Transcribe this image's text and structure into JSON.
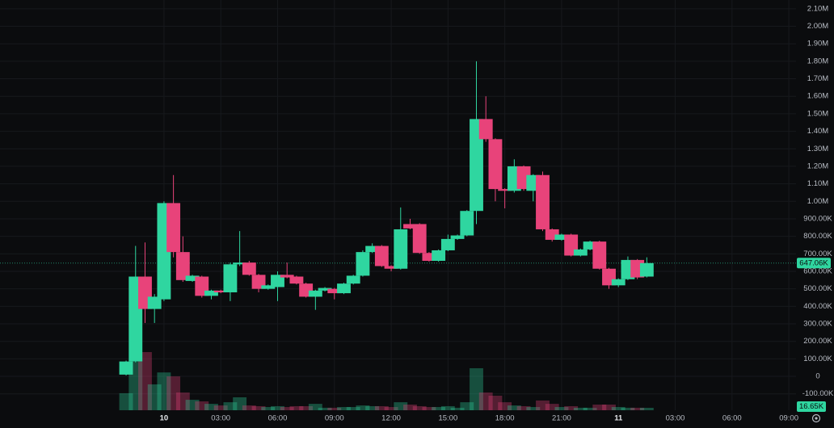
{
  "chart_data": {
    "type": "candlestick",
    "up_color": "#2fd6a0",
    "down_color": "#e8437a",
    "x": [
      -2,
      -1.5,
      -1,
      -0.5,
      0,
      0.5,
      1,
      1.5,
      2,
      2.5,
      3,
      3.5,
      4,
      4.5,
      5,
      5.5,
      6,
      6.5,
      7,
      7.5,
      8,
      8.5,
      9,
      9.5,
      10,
      10.5,
      11,
      11.5,
      12,
      12.5,
      13,
      13.5,
      14,
      14.5,
      15,
      15.5,
      16,
      16.5,
      17,
      17.5,
      18,
      18.5,
      19,
      19.5,
      20,
      20.5,
      21,
      21.5,
      22,
      22.5,
      23,
      23.5,
      24,
      24.5,
      25,
      25.5
    ],
    "open": [
      10000,
      85000,
      570000,
      385000,
      440000,
      990000,
      710000,
      545000,
      570000,
      460000,
      490000,
      480000,
      640000,
      650000,
      580000,
      500000,
      510000,
      580000,
      570000,
      530000,
      455000,
      490000,
      500000,
      475000,
      530000,
      575000,
      710000,
      745000,
      630000,
      615000,
      870000,
      870000,
      705000,
      660000,
      720000,
      785000,
      805000,
      945000,
      1470000,
      1355000,
      1070000,
      1060000,
      1200000,
      1060000,
      1150000,
      840000,
      780000,
      810000,
      690000,
      725000,
      770000,
      615000,
      520000,
      555000,
      665000,
      570000
    ],
    "high": [
      90000,
      745000,
      765000,
      470000,
      1000000,
      1150000,
      800000,
      580000,
      575000,
      495000,
      495000,
      650000,
      830000,
      660000,
      585000,
      525000,
      600000,
      650000,
      575000,
      535000,
      495000,
      510000,
      505000,
      535000,
      580000,
      720000,
      760000,
      750000,
      635000,
      965000,
      900000,
      875000,
      710000,
      725000,
      810000,
      810000,
      950000,
      1800000,
      1600000,
      1360000,
      1075000,
      1240000,
      1205000,
      1155000,
      1170000,
      845000,
      815000,
      815000,
      730000,
      775000,
      775000,
      620000,
      560000,
      685000,
      670000,
      680000
    ],
    "low": [
      5000,
      80000,
      305000,
      305000,
      430000,
      680000,
      540000,
      540000,
      450000,
      440000,
      475000,
      430000,
      630000,
      575000,
      480000,
      495000,
      430000,
      560000,
      525000,
      450000,
      380000,
      485000,
      440000,
      470000,
      525000,
      570000,
      705000,
      625000,
      600000,
      610000,
      840000,
      700000,
      655000,
      655000,
      715000,
      780000,
      800000,
      870000,
      1340000,
      1000000,
      960000,
      1050000,
      1060000,
      1000000,
      830000,
      770000,
      775000,
      685000,
      685000,
      720000,
      610000,
      500000,
      510000,
      550000,
      555000,
      565000
    ],
    "close": [
      85000,
      570000,
      385000,
      455000,
      990000,
      710000,
      550000,
      575000,
      460000,
      490000,
      480000,
      640000,
      650000,
      580000,
      500000,
      520000,
      580000,
      565000,
      530000,
      455000,
      490000,
      505000,
      475000,
      530000,
      575000,
      710000,
      745000,
      630000,
      615000,
      840000,
      845000,
      705000,
      660000,
      720000,
      785000,
      805000,
      945000,
      1470000,
      1355000,
      1070000,
      1060000,
      1200000,
      1070000,
      1150000,
      840000,
      780000,
      810000,
      690000,
      725000,
      770000,
      615000,
      520000,
      555000,
      665000,
      565000,
      647060
    ],
    "volume": [
      117000,
      333000,
      400000,
      178000,
      260000,
      233000,
      122000,
      72000,
      61000,
      44000,
      33000,
      55000,
      89000,
      33000,
      28000,
      22000,
      28000,
      22000,
      28000,
      28000,
      44000,
      17000,
      17000,
      22000,
      22000,
      33000,
      28000,
      28000,
      22000,
      55000,
      39000,
      28000,
      22000,
      22000,
      28000,
      17000,
      55000,
      289000,
      122000,
      100000,
      55000,
      33000,
      28000,
      22000,
      67000,
      44000,
      22000,
      28000,
      17000,
      17000,
      39000,
      39000,
      22000,
      17000,
      17000,
      16650
    ],
    "last_price": {
      "value": 647060,
      "label": "647.06K"
    },
    "last_volume": {
      "value": 16650,
      "label": "16.65K"
    },
    "ylim": [
      -295000,
      2150000
    ],
    "yticks": [
      {
        "value": -100000,
        "label": "-100.00K"
      },
      0,
      {
        "value": 100000,
        "label": "100.00K"
      },
      {
        "value": 200000,
        "label": "200.00K"
      },
      {
        "value": 300000,
        "label": "300.00K"
      },
      {
        "value": 400000,
        "label": "400.00K"
      },
      {
        "value": 500000,
        "label": "500.00K"
      },
      {
        "value": 600000,
        "label": "600.00K"
      },
      {
        "value": 700000,
        "label": "700.00K"
      },
      {
        "value": 800000,
        "label": "800.00K"
      },
      {
        "value": 900000,
        "label": "900.00K"
      },
      {
        "value": 1000000,
        "label": "1.00M"
      },
      {
        "value": 1100000,
        "label": "1.10M"
      },
      {
        "value": 1200000,
        "label": "1.20M"
      },
      {
        "value": 1300000,
        "label": "1.30M"
      },
      {
        "value": 1400000,
        "label": "1.40M"
      },
      {
        "value": 1500000,
        "label": "1.50M"
      },
      {
        "value": 1600000,
        "label": "1.60M"
      },
      {
        "value": 1700000,
        "label": "1.70M"
      },
      {
        "value": 1800000,
        "label": "1.80M"
      },
      {
        "value": 1900000,
        "label": "1.90M"
      },
      {
        "value": 2000000,
        "label": "2.00M"
      },
      {
        "value": 2100000,
        "label": "2.10M"
      }
    ],
    "xlim": [
      -8.66,
      33.38
    ],
    "xticks": [
      {
        "value": 0,
        "label": "10"
      },
      {
        "value": 3,
        "label": "03:00"
      },
      {
        "value": 6,
        "label": "06:00"
      },
      {
        "value": 9,
        "label": "09:00"
      },
      {
        "value": 12,
        "label": "12:00"
      },
      {
        "value": 15,
        "label": "15:00"
      },
      {
        "value": 18,
        "label": "18:00"
      },
      {
        "value": 21,
        "label": "21:00"
      },
      {
        "value": 24,
        "label": "11"
      },
      {
        "value": 27,
        "label": "03:00"
      },
      {
        "value": 30,
        "label": "06:00"
      },
      {
        "value": 33,
        "label": "09:00"
      }
    ],
    "grid": true
  }
}
